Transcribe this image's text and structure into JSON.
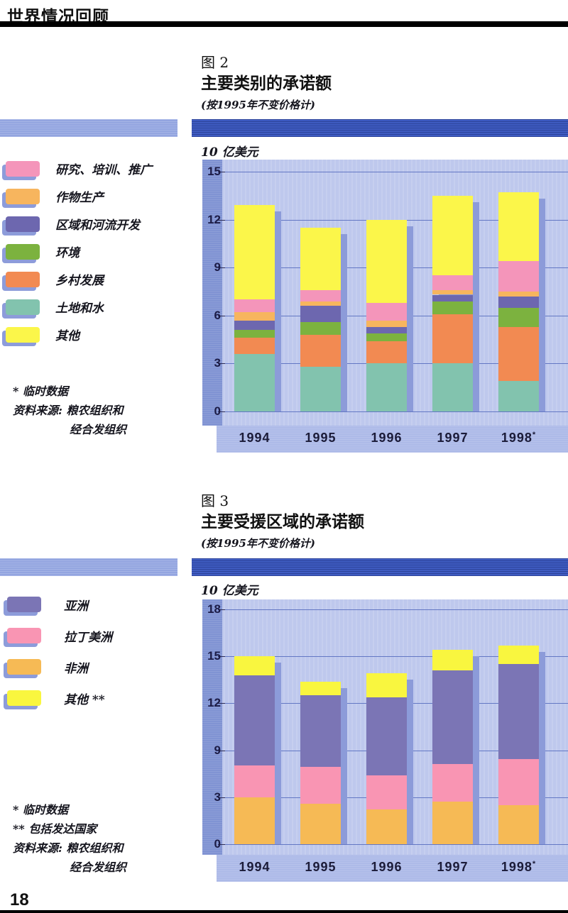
{
  "header": {
    "title": "世界情况回顾"
  },
  "page_number": "18",
  "charts": [
    {
      "id": "fig2",
      "figure_label": "图 2",
      "title": "主要类别的承诺额",
      "subtitle": "(按1995年不变价格计)",
      "unit_label": "10 亿美元",
      "legend": [
        {
          "label": "研究、培训、推广",
          "color": "#f495ba"
        },
        {
          "label": "作物生产",
          "color": "#f7b55e"
        },
        {
          "label": "区域和河流开发",
          "color": "#6d67af"
        },
        {
          "label": "环境",
          "color": "#7cb23f"
        },
        {
          "label": "乡村发展",
          "color": "#f28a52"
        },
        {
          "label": "土地和水",
          "color": "#82c3ae"
        },
        {
          "label": "其他",
          "color": "#fbf64a"
        }
      ],
      "notes": [
        "* 临时数据"
      ],
      "source": [
        "资料来源: 粮农组织和",
        "经合发组织"
      ],
      "chart_data": {
        "type": "bar",
        "stacked": true,
        "categories": [
          "1994",
          "1995",
          "1996",
          "1997",
          "1998*"
        ],
        "series": [
          {
            "name": "土地和水",
            "color": "#82c3ae",
            "values": [
              3.6,
              2.8,
              3.0,
              3.0,
              1.9
            ]
          },
          {
            "name": "乡村发展",
            "color": "#f28a52",
            "values": [
              1.0,
              2.0,
              1.4,
              3.1,
              3.4
            ]
          },
          {
            "name": "环境",
            "color": "#7cb23f",
            "values": [
              0.5,
              0.8,
              0.5,
              0.8,
              1.2
            ]
          },
          {
            "name": "区域和河流开发",
            "color": "#6d67af",
            "values": [
              0.6,
              1.0,
              0.4,
              0.4,
              0.7
            ]
          },
          {
            "name": "作物生产",
            "color": "#f7b55e",
            "values": [
              0.5,
              0.3,
              0.4,
              0.3,
              0.3
            ]
          },
          {
            "name": "研究、培训、推广",
            "color": "#f495ba",
            "values": [
              0.8,
              0.7,
              1.1,
              0.9,
              1.9
            ]
          },
          {
            "name": "其他",
            "color": "#fbf64a",
            "values": [
              5.9,
              3.9,
              5.2,
              5.0,
              4.3
            ]
          }
        ],
        "totals": [
          12.9,
          11.5,
          12.0,
          13.5,
          13.7
        ],
        "ylabel": "10 亿美元",
        "ylim": [
          0,
          15
        ],
        "yticks": [
          0,
          3,
          6,
          9,
          12,
          15
        ],
        "ytick_labels": [
          "0",
          "3",
          "6",
          "9",
          "12",
          "15"
        ],
        "grid": true,
        "legend_position": "left"
      }
    },
    {
      "id": "fig3",
      "figure_label": "图 3",
      "title": "主要受援区域的承诺额",
      "subtitle": "(按1995年不变价格计)",
      "unit_label": "10 亿美元",
      "legend": [
        {
          "label": "亚洲",
          "color": "#7b75b5"
        },
        {
          "label": "拉丁美洲",
          "color": "#f995b3"
        },
        {
          "label": "非洲",
          "color": "#f6ba55"
        },
        {
          "label": "其他 **",
          "color": "#f9f63f"
        }
      ],
      "notes": [
        "* 临时数据",
        "** 包括发达国家"
      ],
      "source": [
        "资料来源: 粮农组织和",
        "经合发组织"
      ],
      "chart_data": {
        "type": "bar",
        "stacked": true,
        "categories": [
          "1994",
          "1995",
          "1996",
          "1997",
          "1998*"
        ],
        "series": [
          {
            "name": "非洲",
            "color": "#f6ba55",
            "values": [
              3.0,
              2.6,
              2.2,
              2.7,
              2.5
            ]
          },
          {
            "name": "拉丁美洲",
            "color": "#f995b3",
            "values": [
              4.1,
              4.3,
              3.6,
              4.5,
              5.4
            ]
          },
          {
            "name": "亚洲",
            "color": "#7b75b5",
            "values": [
              6.7,
              5.6,
              6.6,
              6.9,
              6.6
            ]
          },
          {
            "name": "其他 **",
            "color": "#f9f63f",
            "values": [
              1.2,
              0.9,
              1.5,
              1.3,
              1.2
            ]
          }
        ],
        "totals": [
          15.0,
          13.4,
          13.9,
          15.4,
          15.7
        ],
        "ylabel": "10 亿美元",
        "ylim": [
          0,
          18
        ],
        "yticks": [
          0,
          3,
          9,
          12,
          15,
          18
        ],
        "ytick_labels": [
          "0",
          "3",
          "9",
          "12",
          "15",
          "18"
        ],
        "grid": true,
        "legend_position": "left"
      }
    }
  ]
}
